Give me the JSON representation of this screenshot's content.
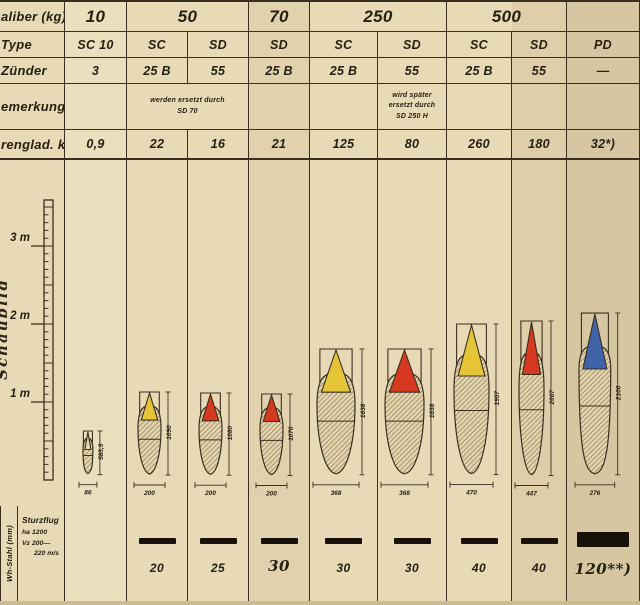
{
  "colors": {
    "paper": "#e8dab6",
    "line": "#3a2f1f",
    "bar_black": "#17110a",
    "cone_yellow": "#e5c537",
    "cone_red": "#d6391f",
    "cone_blue": "#3f63a8"
  },
  "table": {
    "row_labels": {
      "kaliber": "aliber (kg)",
      "type": "Type",
      "zuender": "Zünder",
      "bemerkung": "emerkung",
      "sprengladung": "renglad. kg"
    },
    "kaliber_values": {
      "k10": "10",
      "k50": "50",
      "k70": "70",
      "k250": "250",
      "k500": "500",
      "k_pd": ""
    },
    "types": [
      "SC 10",
      "SC",
      "SD",
      "SD",
      "SC",
      "SD",
      "SC",
      "SD",
      "PD"
    ],
    "zuender": [
      "3",
      "25 B",
      "55",
      "25 B",
      "25 B",
      "55",
      "25 B",
      "55",
      "—"
    ],
    "notes": {
      "n50_line1": "werden ersetzt durch",
      "n50_line2": "SD 70",
      "n250_line1": "wird später",
      "n250_line2": "ersetzt durch",
      "n250_line3": "SD 250 H"
    },
    "sprengladung": [
      "0,9",
      "22",
      "16",
      "21",
      "125",
      "80",
      "260",
      "180",
      "32*)"
    ]
  },
  "diagram": {
    "side_label": "Schaubild",
    "ruler": {
      "marks": [
        "3 m",
        "2 m",
        "1 m"
      ]
    },
    "bombs": [
      {
        "name": "SC 10",
        "length_mm": "585,5",
        "diameter_mm": "86",
        "cone_color": "none"
      },
      {
        "name": "SC 50",
        "length_mm": "1090",
        "diameter_mm": "200",
        "cone_color": "yellow"
      },
      {
        "name": "SD 50",
        "length_mm": "1080",
        "diameter_mm": "200",
        "cone_color": "red"
      },
      {
        "name": "SD 70",
        "length_mm": "1070",
        "diameter_mm": "200",
        "cone_color": "red"
      },
      {
        "name": "SC 250",
        "length_mm": "1638",
        "diameter_mm": "368",
        "cone_color": "yellow"
      },
      {
        "name": "SD 250",
        "length_mm": "1638",
        "diameter_mm": "368",
        "cone_color": "red"
      },
      {
        "name": "SC 500",
        "length_mm": "1957",
        "diameter_mm": "470",
        "cone_color": "yellow"
      },
      {
        "name": "SD 500",
        "length_mm": "2007",
        "diameter_mm": "447",
        "cone_color": "red"
      },
      {
        "name": "PD",
        "length_mm": "2100",
        "diameter_mm": "276",
        "cone_color": "blue"
      }
    ]
  },
  "bottom": {
    "left_label": "Wh-Stahl (mm)",
    "condition": {
      "title": "Sturzflug",
      "ha_label": "ha",
      "ha_value": "1200",
      "vz_label": "Vz",
      "vz_value": "200—",
      "vz_value2": "220 m/s"
    },
    "values": [
      "",
      "20",
      "25",
      "30",
      "30",
      "30",
      "40",
      "40",
      "120**)"
    ]
  }
}
